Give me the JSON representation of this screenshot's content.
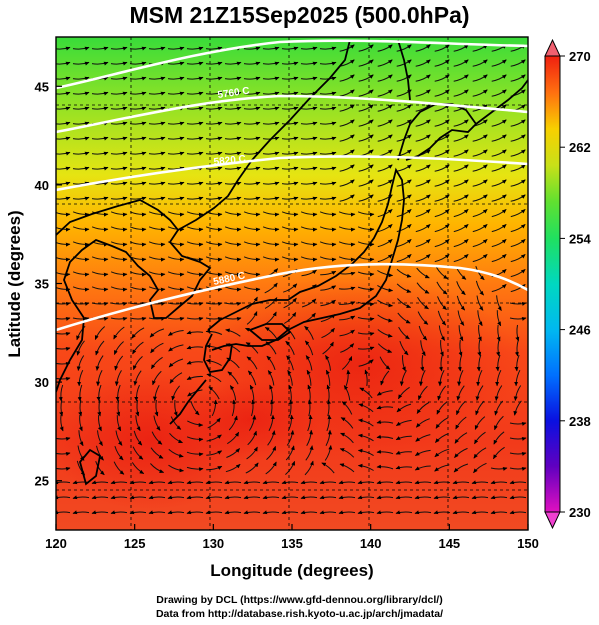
{
  "title": "MSM 21Z15Sep2025 (500.0hPa)",
  "axes": {
    "xlabel": "Longitude (degrees)",
    "ylabel": "Latitude  (degrees)",
    "xlim": [
      120,
      150
    ],
    "ylim": [
      22.5,
      47.5
    ],
    "xticks": [
      "120",
      "125",
      "130",
      "135",
      "140",
      "145",
      "150"
    ],
    "yticks": [
      "25",
      "30",
      "35",
      "40",
      "45"
    ]
  },
  "colorbar": {
    "min": 230,
    "max": 270,
    "ticks": [
      "270",
      "262",
      "254",
      "246",
      "238",
      "230"
    ],
    "colors": [
      "#e010c0",
      "#6000c0",
      "#0a10e0",
      "#0090ff",
      "#00d8d0",
      "#18e080",
      "#30e030",
      "#a0e020",
      "#f0e000",
      "#ffa000",
      "#ff5010",
      "#f02010"
    ]
  },
  "contours": [
    {
      "label": "5760 C",
      "lat_at_130": 45.0
    },
    {
      "label": "5820 C",
      "lat_at_130": 41.8
    },
    {
      "label": "5880 C",
      "lat_at_130": 35.6
    }
  ],
  "credits": {
    "line1": "Drawing by DCL (https://www.gfd-dennou.org/library/dcl/)",
    "line2": "Data from http://database.rish.kyoto-u.ac.jp/arch/jmadata/"
  }
}
